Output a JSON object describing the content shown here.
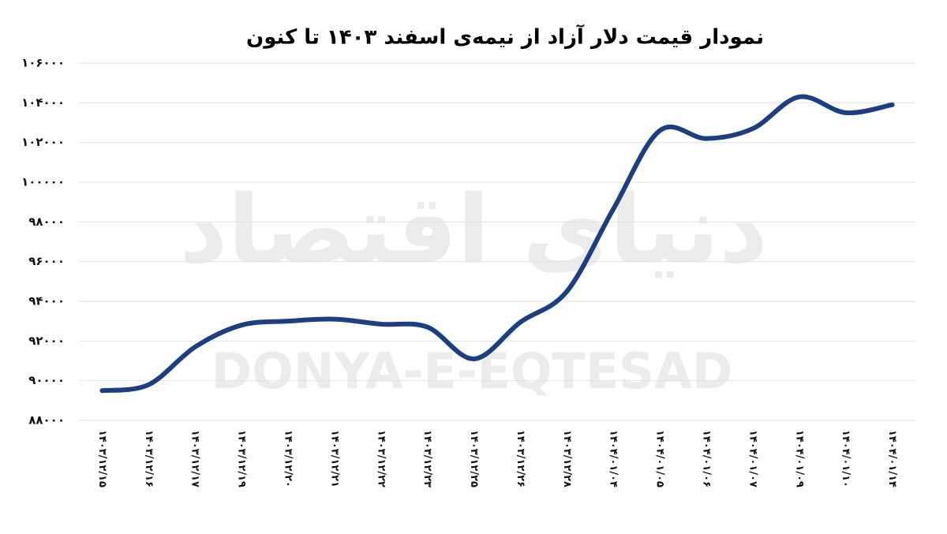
{
  "chart_data": {
    "type": "line",
    "title": "نمودار قیمت دلار آزاد از نیمه‌ی اسفند ۱۴۰۳ تا کنون",
    "watermark": "DONYA-E-EQTESAD",
    "watermark_fa": "دنیای اقتصاد",
    "categories": [
      "۱۴۰۳/۱۲/۱۵",
      "۱۴۰۳/۱۲/۱۶",
      "۱۴۰۳/۱۲/۱۷",
      "۱۴۰۳/۱۲/۱۹",
      "۱۴۰۳/۱۲/۲۰",
      "۱۴۰۳/۱۲/۲۱",
      "۱۴۰۳/۱۲/۲۲",
      "۱۴۰۳/۱۲/۲۳",
      "۱۴۰۳/۱۲/۲۵",
      "۱۴۰۳/۱۲/۲۶",
      "۱۴۰۳/۱۲/۲۸",
      "۱۴۰۴/۰۱/۰۴",
      "۱۴۰۴/۰۱/۰۵",
      "۱۴۰۴/۰۱/۰۶",
      "۱۴۰۴/۰۱/۰۷",
      "۱۴۰۴/۰۱/۰۹",
      "۱۴۰۴/۰۱/۱۰",
      "۱۴۰۴/۰۱/۱۴"
    ],
    "values": [
      89500,
      89800,
      91700,
      92800,
      93000,
      93100,
      92850,
      92700,
      91100,
      92950,
      94500,
      98650,
      102600,
      102200,
      102700,
      104300,
      103500,
      103900
    ],
    "color": "#1d3f80",
    "ylim": [
      88000,
      106000
    ],
    "yticks": [
      {
        "value": 88000,
        "label": "۸۸۰۰۰"
      },
      {
        "value": 90000,
        "label": "۹۰۰۰۰"
      },
      {
        "value": 92000,
        "label": "۹۲۰۰۰"
      },
      {
        "value": 94000,
        "label": "۹۴۰۰۰"
      },
      {
        "value": 96000,
        "label": "۹۶۰۰۰"
      },
      {
        "value": 98000,
        "label": "۹۸۰۰۰"
      },
      {
        "value": 100000,
        "label": "۱۰۰۰۰۰"
      },
      {
        "value": 102000,
        "label": "۱۰۲۰۰۰"
      },
      {
        "value": 104000,
        "label": "۱۰۴۰۰۰"
      },
      {
        "value": 106000,
        "label": "۱۰۶۰۰۰"
      }
    ],
    "grid": true
  }
}
